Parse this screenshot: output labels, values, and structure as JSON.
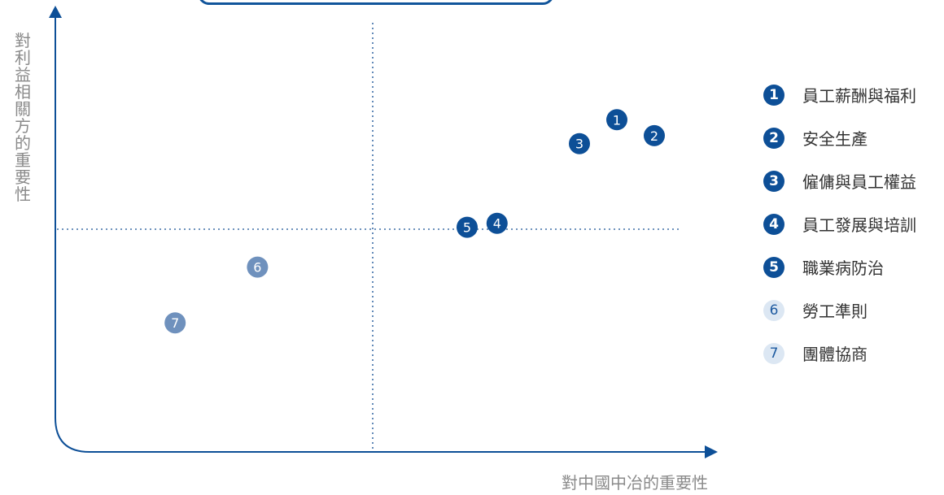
{
  "chart_data": {
    "type": "scatter",
    "ylabel": "對利益相關方的重要性",
    "xlabel": "對中國中冶的重要性",
    "points": [
      {
        "label": "1",
        "x": 7.5,
        "y": 8.3,
        "name": "員工薪酬與福利",
        "tier": "high"
      },
      {
        "label": "2",
        "x": 8.0,
        "y": 7.9,
        "name": "安全生產",
        "tier": "high"
      },
      {
        "label": "3",
        "x": 7.0,
        "y": 7.7,
        "name": "僱傭與員工權益",
        "tier": "high"
      },
      {
        "label": "4",
        "x": 5.9,
        "y": 5.7,
        "name": "員工發展與培訓",
        "tier": "high"
      },
      {
        "label": "5",
        "x": 5.5,
        "y": 5.6,
        "name": "職業病防治",
        "tier": "high"
      },
      {
        "label": "6",
        "x": 2.7,
        "y": 4.6,
        "name": "勞工準則",
        "tier": "low"
      },
      {
        "label": "7",
        "x": 1.6,
        "y": 3.2,
        "name": "團體協商",
        "tier": "low"
      }
    ],
    "xlim": [
      0,
      10
    ],
    "ylim": [
      0,
      10
    ],
    "quadrant_x": 5,
    "quadrant_y": 5,
    "grid": false,
    "legend_placement": "right"
  },
  "colors": {
    "axis": "#0d4f97",
    "guide": "#3d6ea6",
    "high": "#0d4f97",
    "low": "#6f91bd",
    "legend_low_bg": "#dce7f3",
    "legend_low_fg": "#1d5aa0",
    "label_text": "#8a8a8a"
  }
}
